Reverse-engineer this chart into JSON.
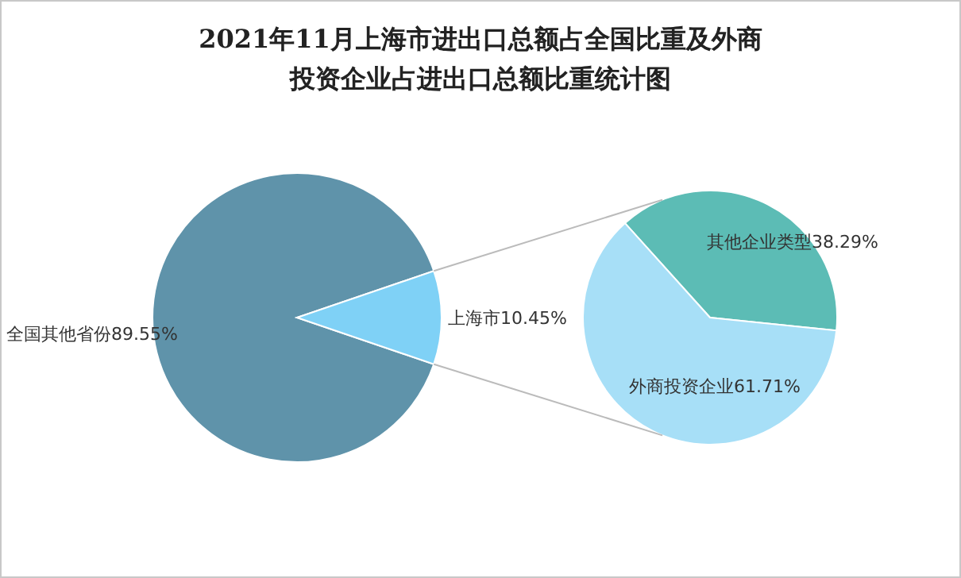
{
  "chart_data": [
    {
      "type": "pie",
      "title": "2021年11月上海市进出口总额占全国比重及外商投资企业占进出口总额比重统计图",
      "categories": [
        "全国其他省份",
        "上海市"
      ],
      "values": [
        89.55,
        10.45
      ],
      "value_labels": [
        "89.55%",
        "10.45%"
      ],
      "colors": [
        "#5f93aa",
        "#7fd1f6"
      ]
    },
    {
      "type": "pie",
      "categories": [
        "其他企业类型",
        "外商投资企业"
      ],
      "values": [
        38.29,
        61.71
      ],
      "value_labels": [
        "38.29%",
        "61.71%"
      ],
      "colors": [
        "#5cbcb5",
        "#a7dff7"
      ]
    }
  ]
}
